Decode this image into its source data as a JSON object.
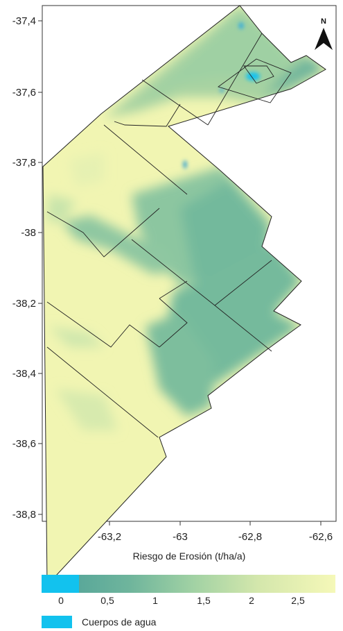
{
  "map": {
    "axis_title": "Riesgo de Erosión (t/ha/a)",
    "lat_ticks": [
      {
        "value": -37.4,
        "label": "-37,4"
      },
      {
        "value": -37.6,
        "label": "-37,6"
      },
      {
        "value": -37.8,
        "label": "-37,8"
      },
      {
        "value": -38.0,
        "label": "-38"
      },
      {
        "value": -38.2,
        "label": "-38,2"
      },
      {
        "value": -38.4,
        "label": "-38,4"
      },
      {
        "value": -38.6,
        "label": "-38,6"
      },
      {
        "value": -38.8,
        "label": "-38,8"
      }
    ],
    "lon_ticks": [
      {
        "value": -63.2,
        "label": "-63,2"
      },
      {
        "value": -63.0,
        "label": "-63"
      },
      {
        "value": -62.8,
        "label": "-62,8"
      },
      {
        "value": -62.6,
        "label": "-62,6"
      }
    ],
    "north_label": "N",
    "colors": {
      "water": "#12c2ee",
      "low": "#6fb59c",
      "mid": "#a7d5a5",
      "high": "#f1f5b2",
      "boundary": "#222222"
    }
  },
  "legend": {
    "ticks": [
      {
        "value": 0,
        "label": "0"
      },
      {
        "value": 0.5,
        "label": "0,5"
      },
      {
        "value": 1,
        "label": "1"
      },
      {
        "value": 1.5,
        "label": "1,5"
      },
      {
        "value": 2,
        "label": "2"
      },
      {
        "value": 2.5,
        "label": "2,5"
      }
    ],
    "water_label": "Cuerpos de agua"
  }
}
